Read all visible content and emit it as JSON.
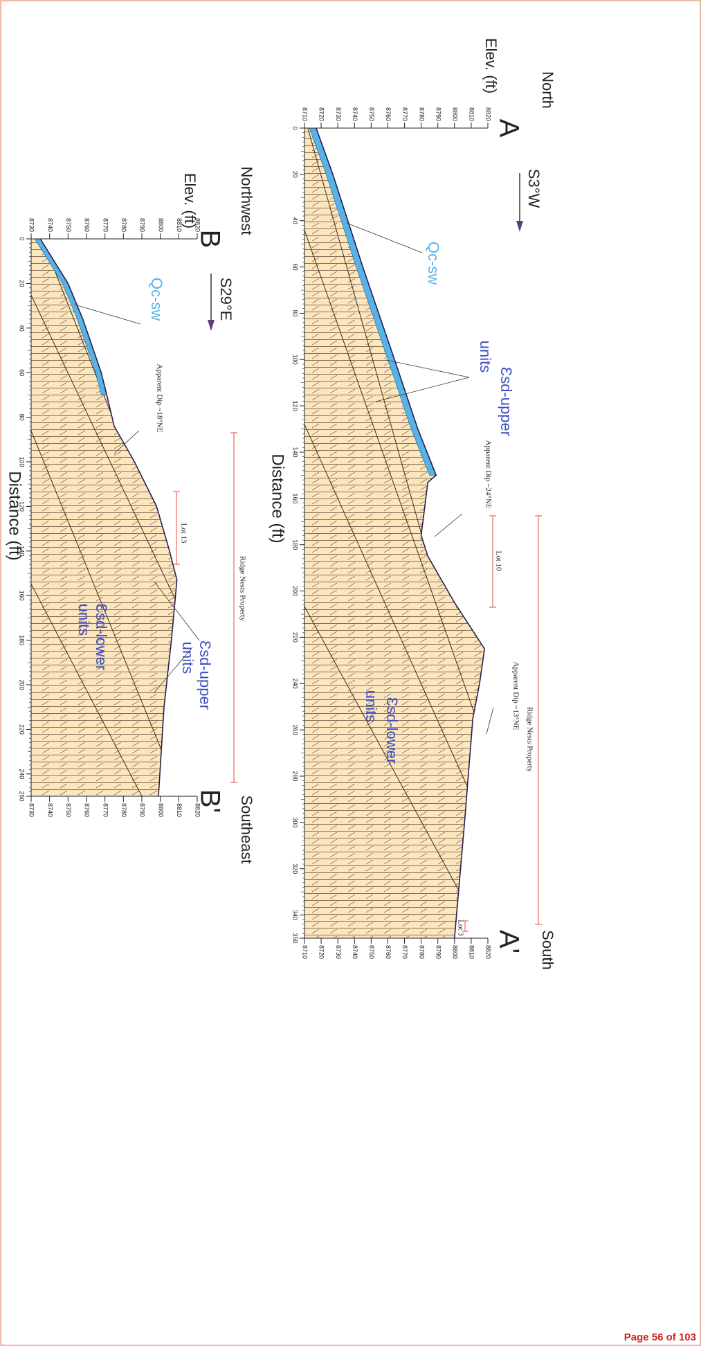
{
  "section_a": {
    "direction_left": "North",
    "direction_right": "South",
    "label_left": "A",
    "label_right": "A'",
    "bearing": "S3°W",
    "y_axis_label": "Elev. (ft)",
    "x_axis_label": "Distance (ft)",
    "elevation_ticks": [
      8710,
      8720,
      8730,
      8740,
      8750,
      8760,
      8770,
      8780,
      8790,
      8800,
      8810,
      8820
    ],
    "distance_ticks": [
      0,
      20,
      40,
      60,
      80,
      100,
      120,
      140,
      160,
      180,
      200,
      220,
      240,
      260,
      280,
      300,
      320,
      340,
      350
    ],
    "annotations": [
      "Qc-sw",
      "Ɛsd-upper",
      "units",
      "Apparent Dip ~24°NE",
      "Lot 10",
      "Apparent Dip ~13°NE",
      "Ridge Nests Property",
      "Lot 3",
      "Ɛsd-lower",
      "units"
    ]
  },
  "section_b": {
    "direction_left": "Northwest",
    "direction_right": "Southeast",
    "label_left": "B",
    "label_right": "B'",
    "bearing": "S29°E",
    "y_axis_label": "Elev. (ft)",
    "x_axis_label": "Distance (ft)",
    "elevation_ticks": [
      8730,
      8740,
      8750,
      8760,
      8770,
      8780,
      8790,
      8800,
      8810,
      8820
    ],
    "distance_ticks": [
      0,
      20,
      40,
      60,
      80,
      100,
      120,
      140,
      160,
      180,
      200,
      220,
      240,
      250
    ],
    "annotations": [
      "Qc-sw",
      "Apparent Dip ~18°NE",
      "Lot 13",
      "Ridge Nests Property",
      "Ɛsd-upper",
      "units",
      "Ɛsd-lower",
      "units"
    ]
  },
  "footer": "Page 56 of 103"
}
